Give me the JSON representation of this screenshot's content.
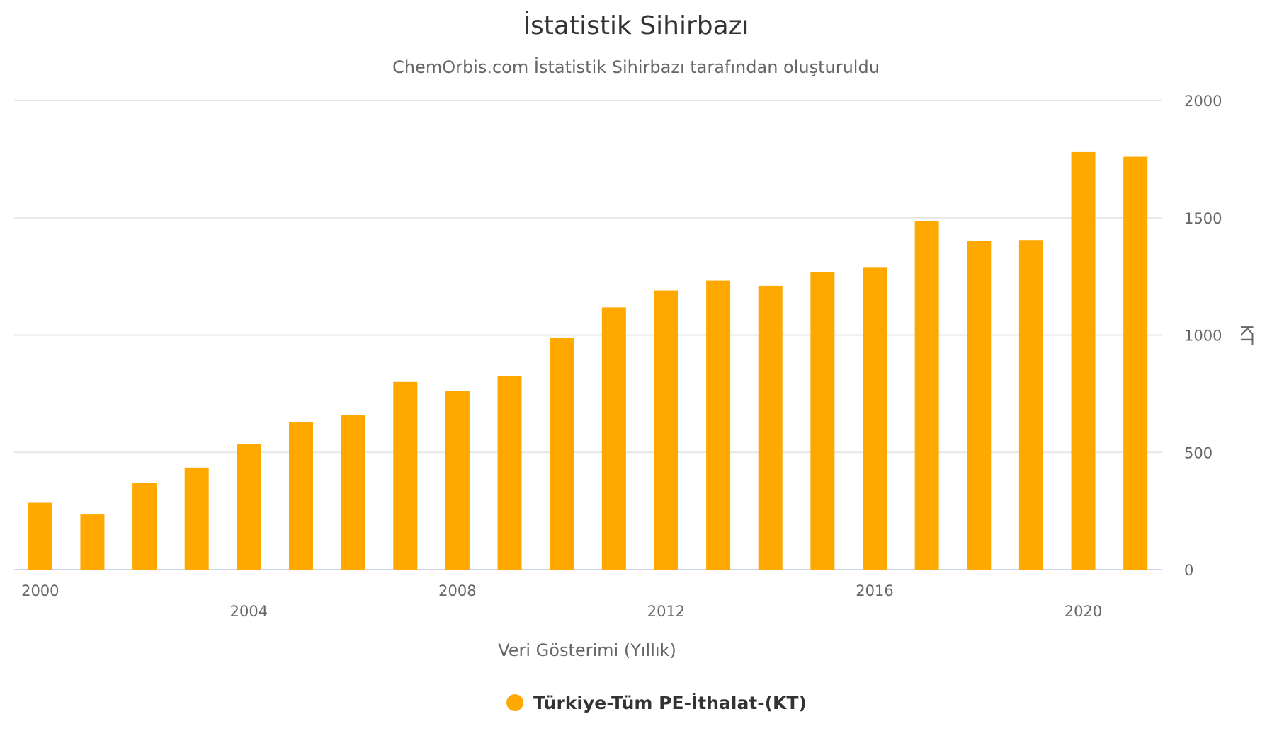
{
  "chart_data": {
    "type": "bar",
    "title": "İstatistik Sihirbazı",
    "subtitle": "ChemOrbis.com İstatistik Sihirbazı tarafından oluşturuldu",
    "xlabel": "Veri Gösterimi (Yıllık)",
    "ylabel": "KT",
    "ylim": [
      0,
      2000
    ],
    "yticks": [
      0,
      500,
      1000,
      1500,
      2000
    ],
    "y_axis_side": "right",
    "grid": true,
    "legend_position": "bottom-center",
    "categories": [
      "2000",
      "2001",
      "2002",
      "2003",
      "2004",
      "2005",
      "2006",
      "2007",
      "2008",
      "2009",
      "2010",
      "2011",
      "2012",
      "2013",
      "2014",
      "2015",
      "2016",
      "2017",
      "2018",
      "2019",
      "2020",
      "2021"
    ],
    "x_tick_labels": [
      {
        "label": "2000",
        "row": 1
      },
      {
        "label": "2004",
        "row": 2
      },
      {
        "label": "2008",
        "row": 1
      },
      {
        "label": "2012",
        "row": 2
      },
      {
        "label": "2016",
        "row": 1
      },
      {
        "label": "2020",
        "row": 2
      }
    ],
    "series": [
      {
        "name": "Türkiye-Tüm PE-İthalat-(KT)",
        "color": "#FFA800",
        "values": [
          285,
          235,
          368,
          435,
          537,
          630,
          660,
          800,
          763,
          825,
          988,
          1118,
          1190,
          1232,
          1210,
          1267,
          1287,
          1485,
          1400,
          1405,
          1780,
          1760
        ]
      }
    ]
  }
}
